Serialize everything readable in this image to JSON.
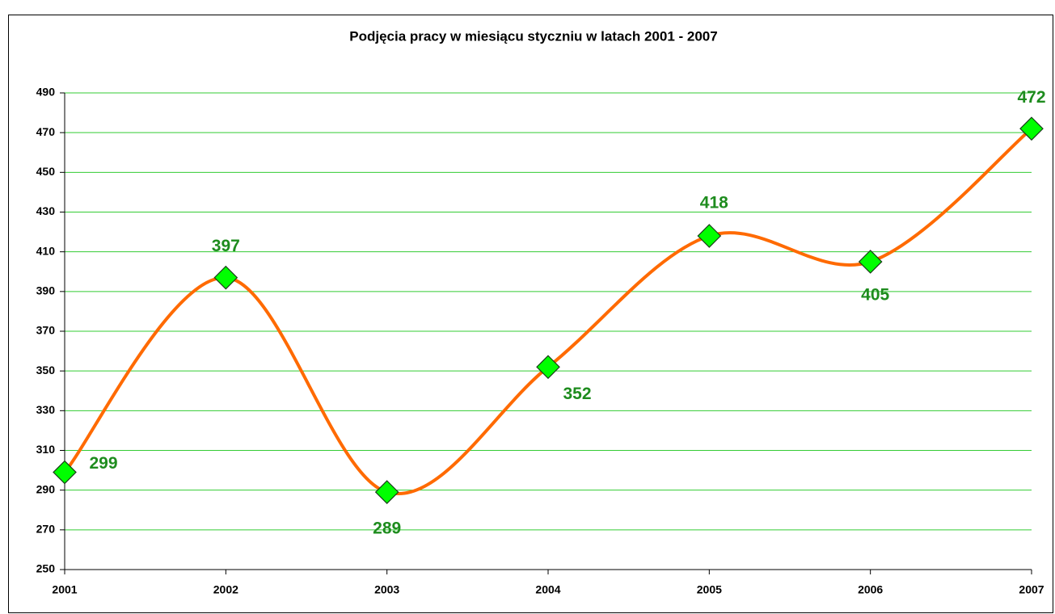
{
  "chart_data": {
    "type": "line",
    "title": "Podjęcia pracy w miesiącu styczniu w latach 2001 - 2007",
    "categories": [
      "2001",
      "2002",
      "2003",
      "2004",
      "2005",
      "2006",
      "2007"
    ],
    "series": [
      {
        "name": "Podjęcia pracy",
        "color": "#ff6a00",
        "marker_color": "#00ff00",
        "label_color": "#1e8c1e",
        "values": [
          299,
          397,
          289,
          352,
          418,
          405,
          472
        ]
      }
    ],
    "ylim": [
      250,
      490
    ],
    "yticks": [
      250,
      270,
      290,
      310,
      330,
      350,
      370,
      390,
      410,
      430,
      450,
      470,
      490
    ],
    "grid": true,
    "grid_color": "#33cc33",
    "smooth": true
  }
}
